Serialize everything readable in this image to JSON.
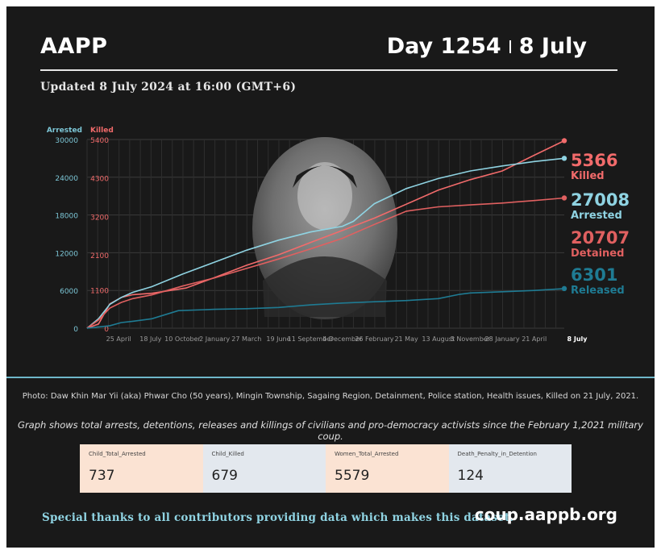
{
  "header": {
    "org": "AAPP",
    "day": "Day 1254",
    "date": "8 July",
    "updated": "Updated 8 July 2024 at 16:00 (GMT+6)"
  },
  "photo": {
    "caption": "Photo: Daw Khin Mar Yii (aka) Phwar Cho (50 years), Mingin Township, Sagaing Region, Detainment, Police station, Health issues, Killed on 21 July, 2021."
  },
  "note": "Graph shows total arrests, detentions, releases and killings of civilians and pro-democracy activists since the February 1,2021 military coup.",
  "stats": [
    {
      "label": "Child_Total_Arrested",
      "value": "737"
    },
    {
      "label": "Child_Killed",
      "value": "679"
    },
    {
      "label": "Women_Total_Arrested",
      "value": "5579"
    },
    {
      "label": "Death_Penalty_in_Detention",
      "value": "124"
    }
  ],
  "footer": {
    "thanks": "Special thanks to all contributors providing data which makes this dataset.",
    "site": "coup.aappb.org"
  },
  "colors": {
    "arrested": "#8fd3e2",
    "killed": "#f26b6b",
    "detained": "#e06060",
    "released": "#1f7b93",
    "killed_axis": "#f06a6a",
    "arrested_axis": "#7cc6d6"
  },
  "chart_data": {
    "type": "line",
    "x_tick_labels": [
      "25 April",
      "18 July",
      "10 October",
      "2 January",
      "27 March",
      "19 June",
      "11 September",
      "4 December",
      "26 February",
      "21 May",
      "13 August",
      "5 November",
      "28 January",
      "21 April",
      "8 July"
    ],
    "x_ticks_days": [
      83,
      167,
      251,
      335,
      419,
      503,
      587,
      671,
      755,
      839,
      923,
      1007,
      1091,
      1175,
      1254
    ],
    "xlim_days": [
      0,
      1254
    ],
    "axis_left": {
      "label": "Arrested",
      "ticks": [
        0,
        6000,
        12000,
        18000,
        24000,
        30000
      ],
      "lim": [
        0,
        30000
      ]
    },
    "axis_right": {
      "label": "Killed",
      "ticks": [
        0,
        1100,
        2100,
        3200,
        4300,
        5400
      ],
      "lim": [
        0,
        5400
      ]
    },
    "grid": true,
    "series": [
      {
        "name": "Killed",
        "axis": "right",
        "end_value": "5366",
        "points": [
          [
            0,
            0
          ],
          [
            30,
            120
          ],
          [
            60,
            700
          ],
          [
            90,
            880
          ],
          [
            120,
            960
          ],
          [
            170,
            1000
          ],
          [
            260,
            1150
          ],
          [
            335,
            1450
          ],
          [
            419,
            1800
          ],
          [
            503,
            2100
          ],
          [
            587,
            2450
          ],
          [
            671,
            2800
          ],
          [
            755,
            3150
          ],
          [
            839,
            3550
          ],
          [
            923,
            3950
          ],
          [
            1007,
            4250
          ],
          [
            1091,
            4500
          ],
          [
            1175,
            4950
          ],
          [
            1254,
            5366
          ]
        ]
      },
      {
        "name": "Arrested",
        "axis": "left",
        "end_value": "27008",
        "points": [
          [
            0,
            0
          ],
          [
            30,
            1500
          ],
          [
            60,
            3800
          ],
          [
            90,
            4900
          ],
          [
            120,
            5700
          ],
          [
            170,
            6600
          ],
          [
            251,
            8600
          ],
          [
            335,
            10500
          ],
          [
            419,
            12400
          ],
          [
            503,
            14000
          ],
          [
            587,
            15300
          ],
          [
            671,
            16200
          ],
          [
            700,
            17000
          ],
          [
            755,
            19800
          ],
          [
            839,
            22200
          ],
          [
            923,
            23800
          ],
          [
            1007,
            25000
          ],
          [
            1091,
            25800
          ],
          [
            1175,
            26500
          ],
          [
            1254,
            27008
          ]
        ]
      },
      {
        "name": "Detained",
        "axis": "left",
        "end_value": "20707",
        "points": [
          [
            0,
            0
          ],
          [
            30,
            1300
          ],
          [
            60,
            3200
          ],
          [
            90,
            4100
          ],
          [
            120,
            4700
          ],
          [
            170,
            5300
          ],
          [
            251,
            6700
          ],
          [
            335,
            8000
          ],
          [
            419,
            9500
          ],
          [
            503,
            11000
          ],
          [
            587,
            12600
          ],
          [
            671,
            14300
          ],
          [
            755,
            16500
          ],
          [
            839,
            18600
          ],
          [
            923,
            19300
          ],
          [
            1007,
            19600
          ],
          [
            1091,
            19900
          ],
          [
            1175,
            20300
          ],
          [
            1254,
            20707
          ]
        ]
      },
      {
        "name": "Released",
        "axis": "left",
        "end_value": "6301",
        "points": [
          [
            0,
            0
          ],
          [
            60,
            400
          ],
          [
            90,
            900
          ],
          [
            120,
            1100
          ],
          [
            170,
            1500
          ],
          [
            240,
            2800
          ],
          [
            335,
            3000
          ],
          [
            419,
            3100
          ],
          [
            503,
            3300
          ],
          [
            587,
            3700
          ],
          [
            671,
            4000
          ],
          [
            755,
            4200
          ],
          [
            839,
            4400
          ],
          [
            923,
            4700
          ],
          [
            980,
            5400
          ],
          [
            1007,
            5600
          ],
          [
            1091,
            5800
          ],
          [
            1175,
            6000
          ],
          [
            1254,
            6301
          ]
        ]
      }
    ]
  }
}
